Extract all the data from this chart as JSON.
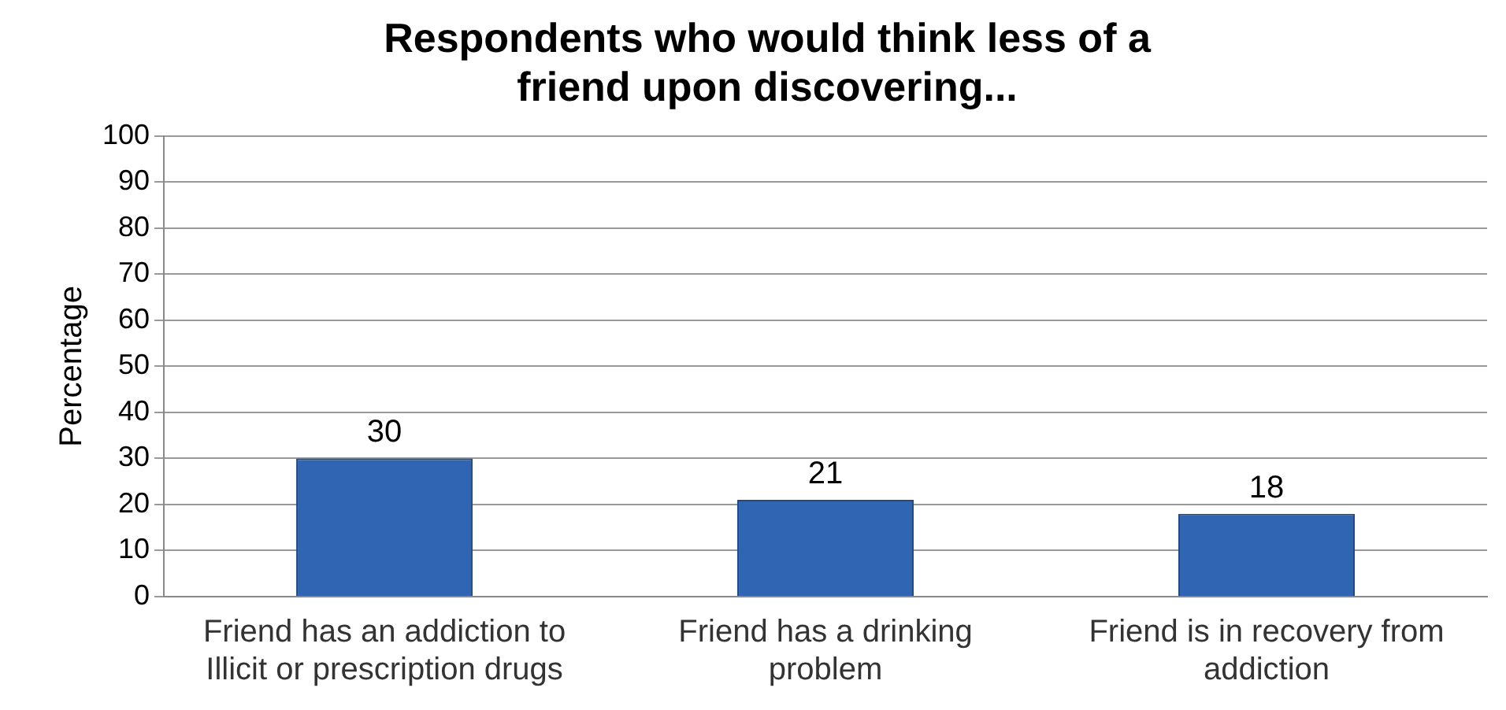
{
  "chart_data": {
    "type": "bar",
    "title": "Respondents who would think less of a friend upon discovering...",
    "ylabel": "Percentage",
    "categories": [
      "Friend has an addiction to Illicit or prescription drugs",
      "Friend has a drinking problem",
      "Friend is in recovery from addiction"
    ],
    "values": [
      30,
      21,
      18
    ],
    "color": "#2f65b3",
    "ylim": [
      0,
      100
    ],
    "yticks": [
      0,
      10,
      20,
      30,
      40,
      50,
      60,
      70,
      80,
      90,
      100
    ],
    "grid": "y",
    "legend": false,
    "data_labels": true
  }
}
